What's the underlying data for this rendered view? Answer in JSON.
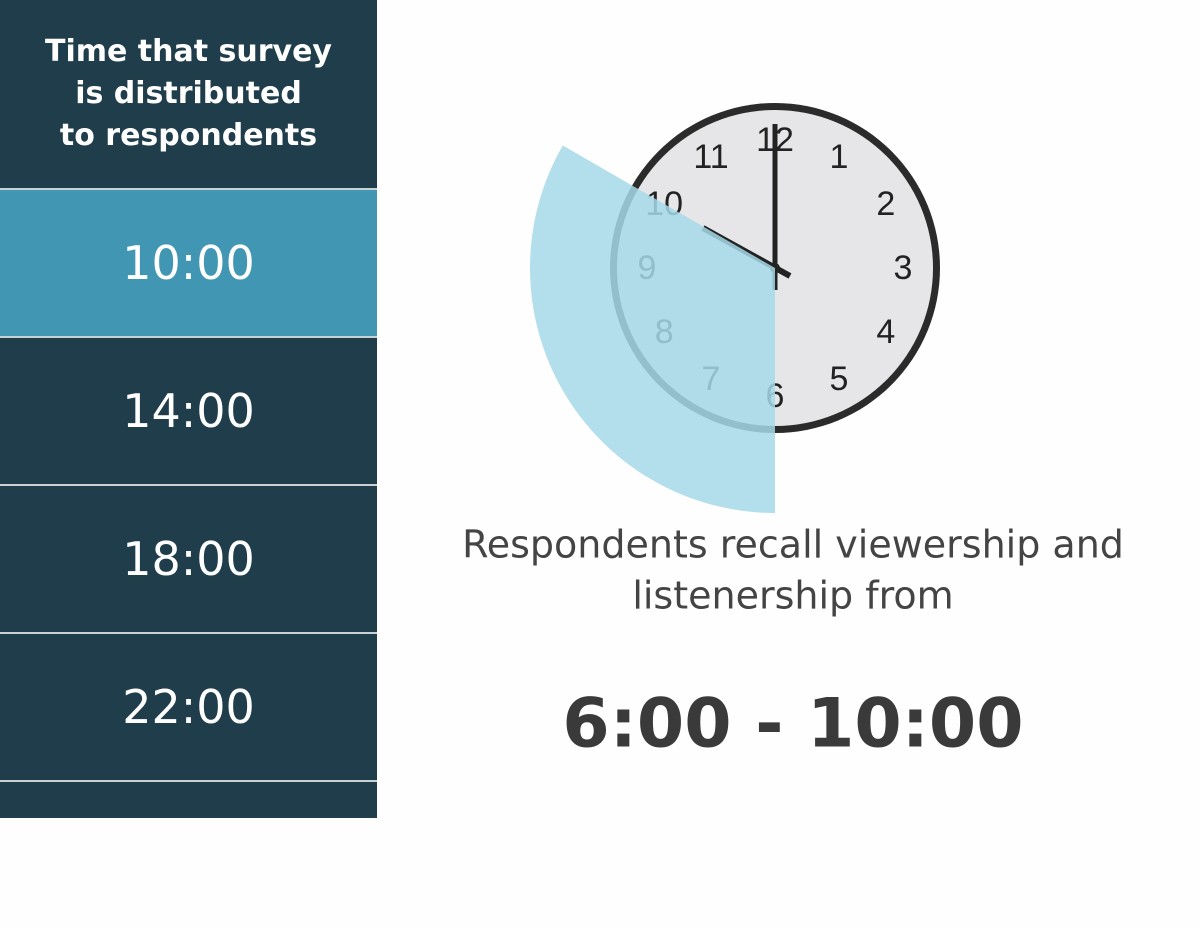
{
  "sidebar": {
    "title_lines": [
      "Time that survey",
      "is distributed",
      "to respondents"
    ],
    "times": [
      "10:00",
      "14:00",
      "18:00",
      "22:00"
    ],
    "selected": 0
  },
  "clock": {
    "numbers": [
      "12",
      "1",
      "2",
      "3",
      "4",
      "5",
      "6",
      "7",
      "8",
      "9",
      "10",
      "11"
    ]
  },
  "caption_lines": [
    "Respondents recall viewership and",
    "listenership from"
  ],
  "range": "6:00 - 10:00"
}
